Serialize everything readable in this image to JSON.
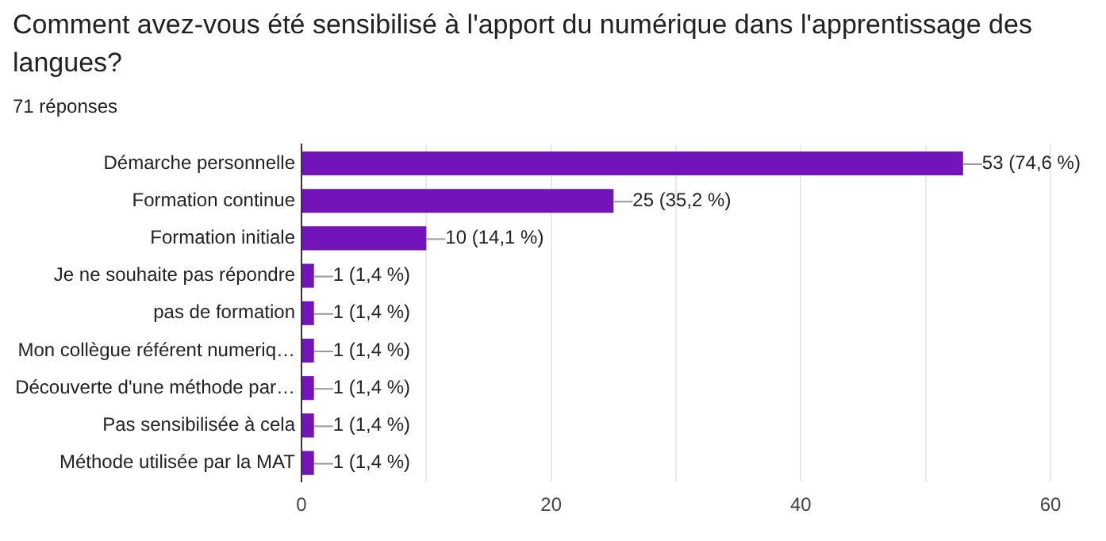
{
  "chart_data": {
    "type": "bar",
    "orientation": "horizontal",
    "title": "Comment avez-vous été sensibilisé à l'apport du numérique dans l'apprentissage des langues?",
    "subtitle": "71 réponses",
    "categories": [
      "Démarche personnelle",
      "Formation continue",
      "Formation initiale",
      "Je ne souhaite pas répondre",
      "pas de formation",
      "Mon collègue référent numeriq…",
      "Découverte d'une méthode par…",
      "Pas sensibilisée à cela",
      "Méthode utilisée par la MAT"
    ],
    "values": [
      53,
      25,
      10,
      1,
      1,
      1,
      1,
      1,
      1
    ],
    "value_labels": [
      "53 (74,6 %)",
      "25 (35,2 %)",
      "10 (14,1 %)",
      "1 (1,4 %)",
      "1 (1,4 %)",
      "1 (1,4 %)",
      "1 (1,4 %)",
      "1 (1,4 %)",
      "1 (1,4 %)"
    ],
    "color": "#7314ba",
    "xlim": [
      0,
      60
    ],
    "xticks": [
      0,
      {
        "value": 10,
        "label": null
      },
      20,
      {
        "value": 30,
        "label": null
      },
      40,
      {
        "value": 50,
        "label": null
      },
      60
    ],
    "grid": "x",
    "legend": false
  }
}
